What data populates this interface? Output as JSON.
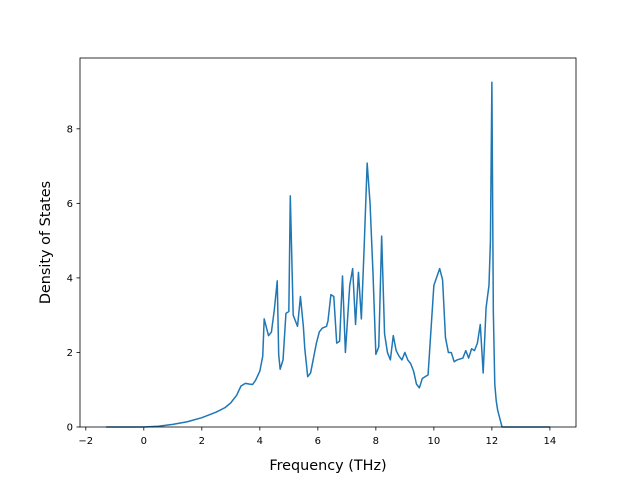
{
  "chart_data": {
    "type": "line",
    "xlabel": "Frequency (THz)",
    "ylabel": "Density of States",
    "xlim": [
      -2.2,
      14.9
    ],
    "ylim": [
      0,
      9.9
    ],
    "grid": false,
    "x_ticks": [
      -2,
      0,
      2,
      4,
      6,
      8,
      10,
      12,
      14
    ],
    "y_ticks": [
      0,
      2,
      4,
      6,
      8
    ],
    "line_color": "#1f77b4",
    "series": [
      {
        "x": [
          -1.3,
          -0.5,
          0.0,
          0.5,
          1.0,
          1.5,
          2.0,
          2.5,
          2.8,
          3.0,
          3.2,
          3.35,
          3.5,
          3.65,
          3.75,
          3.85,
          4.0,
          4.1,
          4.15,
          4.3,
          4.4,
          4.5,
          4.6,
          4.65,
          4.7,
          4.8,
          4.9,
          5.0,
          5.05,
          5.15,
          5.3,
          5.4,
          5.5,
          5.55,
          5.65,
          5.75,
          5.85,
          5.95,
          6.05,
          6.15,
          6.3,
          6.35,
          6.45,
          6.55,
          6.65,
          6.75,
          6.85,
          6.95,
          7.0,
          7.1,
          7.2,
          7.3,
          7.4,
          7.5,
          7.6,
          7.7,
          7.8,
          7.9,
          8.0,
          8.1,
          8.2,
          8.3,
          8.4,
          8.5,
          8.6,
          8.7,
          8.8,
          8.9,
          9.0,
          9.1,
          9.2,
          9.3,
          9.4,
          9.5,
          9.6,
          9.8,
          10.0,
          10.2,
          10.3,
          10.4,
          10.5,
          10.6,
          10.7,
          10.8,
          11.0,
          11.1,
          11.2,
          11.3,
          11.4,
          11.5,
          11.6,
          11.7,
          11.8,
          11.9,
          11.95,
          12.0,
          12.05,
          12.1,
          12.15,
          12.2,
          12.25,
          12.3,
          12.35,
          12.4,
          12.5,
          12.6,
          12.7,
          12.8,
          12.85,
          13.0,
          13.5,
          14.0
        ],
        "values": [
          0.0,
          0.0,
          0.0,
          0.02,
          0.07,
          0.14,
          0.25,
          0.4,
          0.52,
          0.65,
          0.85,
          1.1,
          1.17,
          1.15,
          1.14,
          1.25,
          1.5,
          1.9,
          2.9,
          2.45,
          2.55,
          3.15,
          3.92,
          1.95,
          1.55,
          1.8,
          3.05,
          3.1,
          6.2,
          3.0,
          2.7,
          3.5,
          2.7,
          2.1,
          1.35,
          1.45,
          1.85,
          2.25,
          2.55,
          2.65,
          2.7,
          2.85,
          3.55,
          3.5,
          2.25,
          2.3,
          4.05,
          2.0,
          2.6,
          3.8,
          4.25,
          2.75,
          4.15,
          2.9,
          4.9,
          7.08,
          6.0,
          4.15,
          1.95,
          2.15,
          5.12,
          2.5,
          2.0,
          1.8,
          2.45,
          2.05,
          1.9,
          1.8,
          2.0,
          1.8,
          1.7,
          1.5,
          1.15,
          1.05,
          1.3,
          1.4,
          3.8,
          4.25,
          3.95,
          2.4,
          2.0,
          2.0,
          1.75,
          1.8,
          1.85,
          2.05,
          1.85,
          2.1,
          2.05,
          2.25,
          2.75,
          1.45,
          3.2,
          3.8,
          5.0,
          9.25,
          3.1,
          1.15,
          0.7,
          0.45,
          0.3,
          0.15,
          0.0,
          0.0,
          0.0,
          0.0,
          0.0,
          0.0,
          0.0,
          0.0,
          0.0,
          0.0
        ]
      }
    ]
  }
}
